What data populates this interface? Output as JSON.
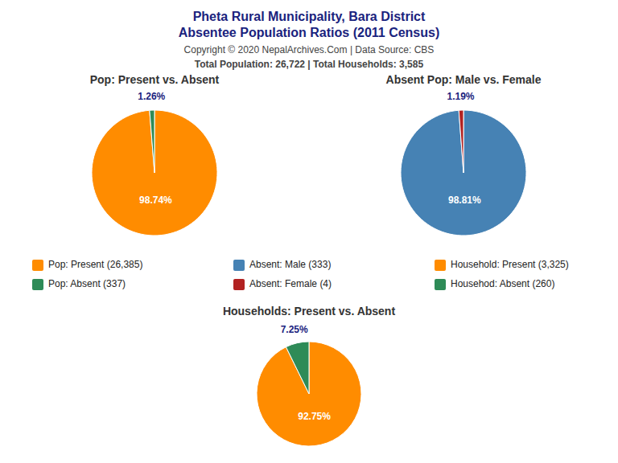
{
  "title": "Pheta Rural Municipality, Bara District",
  "subtitle": "Absentee Population Ratios (2011 Census)",
  "annotations": [
    "Copyright © 2020 NepalArchives.Com | Data Source: CBS",
    "Total Population: 26,722 | Total Households: 3,585"
  ],
  "chart_data": [
    {
      "type": "pie",
      "title": "Pop: Present vs. Absent",
      "categories": [
        "Pop: Present (26,385)",
        "Pop: Absent (337)"
      ],
      "values": [
        98.74,
        1.26
      ],
      "value_labels": [
        "98.74%",
        "1.26%"
      ],
      "colors": [
        "#FF8C00",
        "#2E8B57"
      ],
      "data_labels": true
    },
    {
      "type": "pie",
      "title": "Absent Pop: Male vs. Female",
      "categories": [
        "Absent: Male (333)",
        "Absent: Female (4)"
      ],
      "values": [
        98.81,
        1.19
      ],
      "value_labels": [
        "98.81%",
        "1.19%"
      ],
      "colors": [
        "#4682B4",
        "#B22222"
      ],
      "data_labels": true
    },
    {
      "type": "pie",
      "title": "Households: Present vs. Absent",
      "categories": [
        "Household: Present (3,325)",
        "Househod: Absent (260)"
      ],
      "values": [
        92.75,
        7.25
      ],
      "value_labels": [
        "92.75%",
        "7.25%"
      ],
      "colors": [
        "#FF8C00",
        "#2E8B57"
      ],
      "data_labels": true
    }
  ]
}
